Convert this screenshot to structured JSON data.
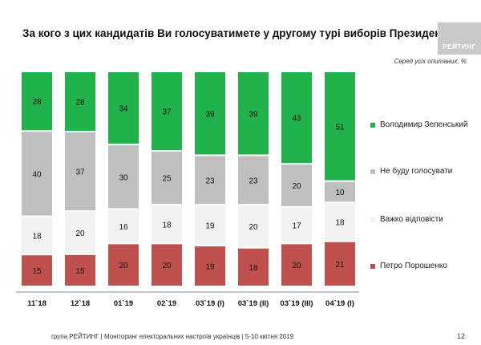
{
  "header": {
    "title": "За кого з цих кандидатів Ви голосуватимете у другому турі виборів Президента України?",
    "logo_text": "РЕЙТИНГ",
    "subnote": "Серед усіх опитаних, %"
  },
  "footer": {
    "text": "група РЕЙТИНГ | Моніторинг електоральних настроїв українців  |  5-10 квітня  2019",
    "page": "12"
  },
  "chart_data": {
    "type": "bar",
    "stacked": true,
    "percent_stacked": true,
    "categories": [
      "11`18",
      "12`18",
      "01`19",
      "02`19",
      "03`19 (I)",
      "03`19 (II)",
      "03`19 (III)",
      "04`19 (I)"
    ],
    "series": [
      {
        "name": "Петро Порошенко",
        "color": "#c0504d",
        "values": [
          15,
          15,
          20,
          20,
          19,
          18,
          20,
          21
        ]
      },
      {
        "name": "Важко відповісти",
        "color": "#f2f2f2",
        "values": [
          18,
          20,
          16,
          18,
          19,
          20,
          17,
          18
        ]
      },
      {
        "name": "Не буду голосувати",
        "color": "#bfbfbf",
        "values": [
          40,
          37,
          30,
          25,
          23,
          23,
          20,
          10
        ]
      },
      {
        "name": "Володимир Зеленський",
        "color": "#21b24b",
        "values": [
          28,
          28,
          34,
          37,
          39,
          39,
          43,
          51
        ]
      }
    ],
    "legend_position": "right",
    "grid": false
  }
}
